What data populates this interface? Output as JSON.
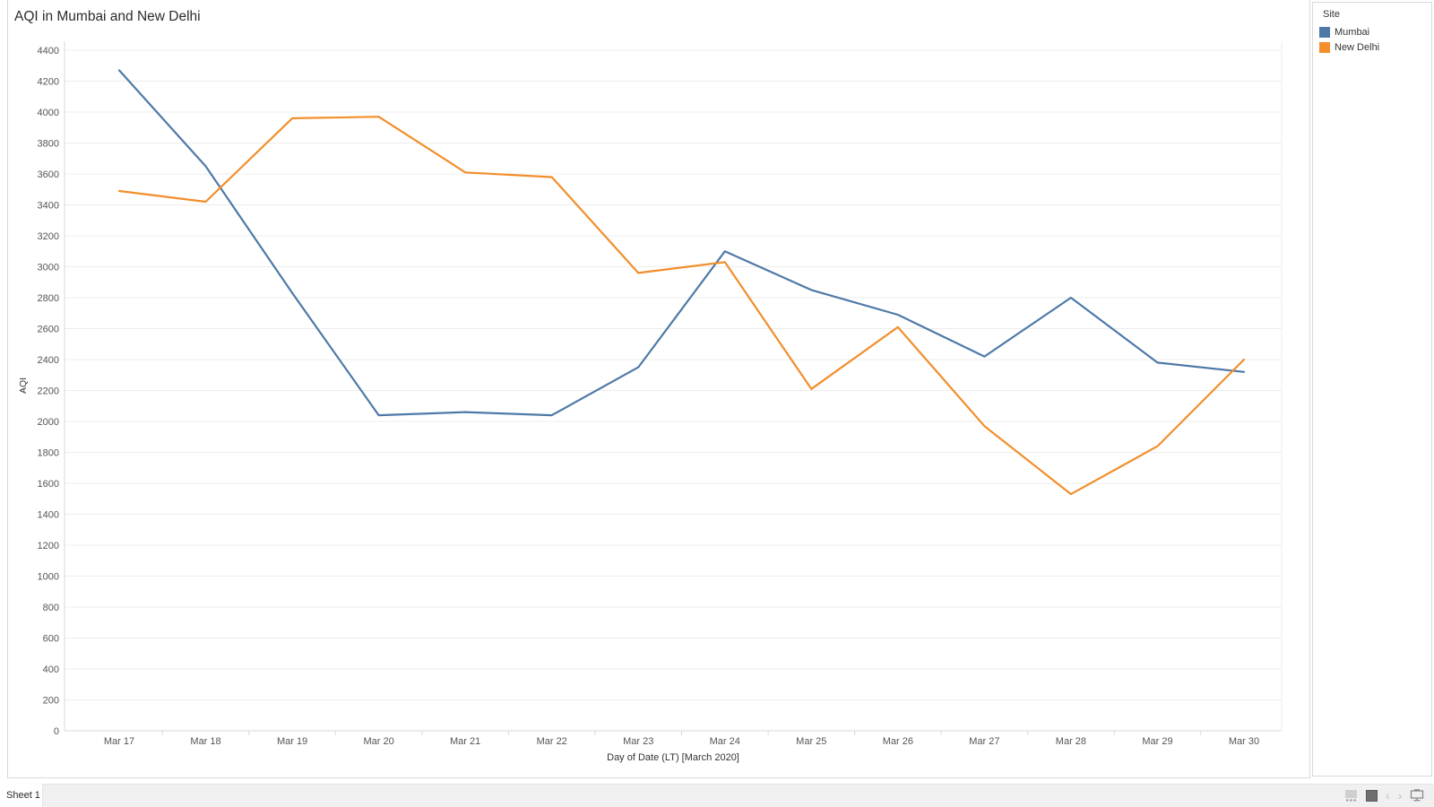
{
  "title": "AQI in Mumbai and New Delhi",
  "chart_data": {
    "type": "line",
    "x": [
      "Mar 17",
      "Mar 18",
      "Mar 19",
      "Mar 20",
      "Mar 21",
      "Mar 22",
      "Mar 23",
      "Mar 24",
      "Mar 25",
      "Mar 26",
      "Mar 27",
      "Mar 28",
      "Mar 29",
      "Mar 30"
    ],
    "series": [
      {
        "name": "Mumbai",
        "color": "#4e79a7",
        "values": [
          4270,
          3650,
          2830,
          2040,
          2060,
          2040,
          2350,
          3100,
          2850,
          2690,
          2420,
          2800,
          2380,
          2320
        ]
      },
      {
        "name": "New Delhi",
        "color": "#f28e2b",
        "values": [
          3490,
          3420,
          3960,
          3970,
          3610,
          3580,
          2960,
          3030,
          2210,
          2610,
          1970,
          1530,
          1840,
          2400
        ]
      }
    ],
    "title": "AQI in Mumbai and New Delhi",
    "xlabel": "Day of Date (LT) [March 2020]",
    "ylabel": "AQI",
    "ylim": [
      0,
      4400
    ],
    "ytick_step": 200,
    "grid": true,
    "legend_position": "right"
  },
  "legend": {
    "title": "Site",
    "items": [
      {
        "label": "Mumbai",
        "color": "#4e79a7"
      },
      {
        "label": "New Delhi",
        "color": "#f28e2b"
      }
    ]
  },
  "sheet_tabs": {
    "active_label": "Sheet 1"
  },
  "status_bar": {
    "icons": [
      "tile-view-icon",
      "dark-square-icon",
      "prev-arrow-icon",
      "next-arrow-icon",
      "presentation-mode-icon"
    ],
    "prev_glyph": "‹",
    "next_glyph": "›"
  },
  "colors": {
    "gridline": "#ececec",
    "axis_line": "#d9d9d9",
    "tick_label": "#555555",
    "panel_border": "#d9d9d9",
    "strip_bg": "#f0f0f0"
  }
}
